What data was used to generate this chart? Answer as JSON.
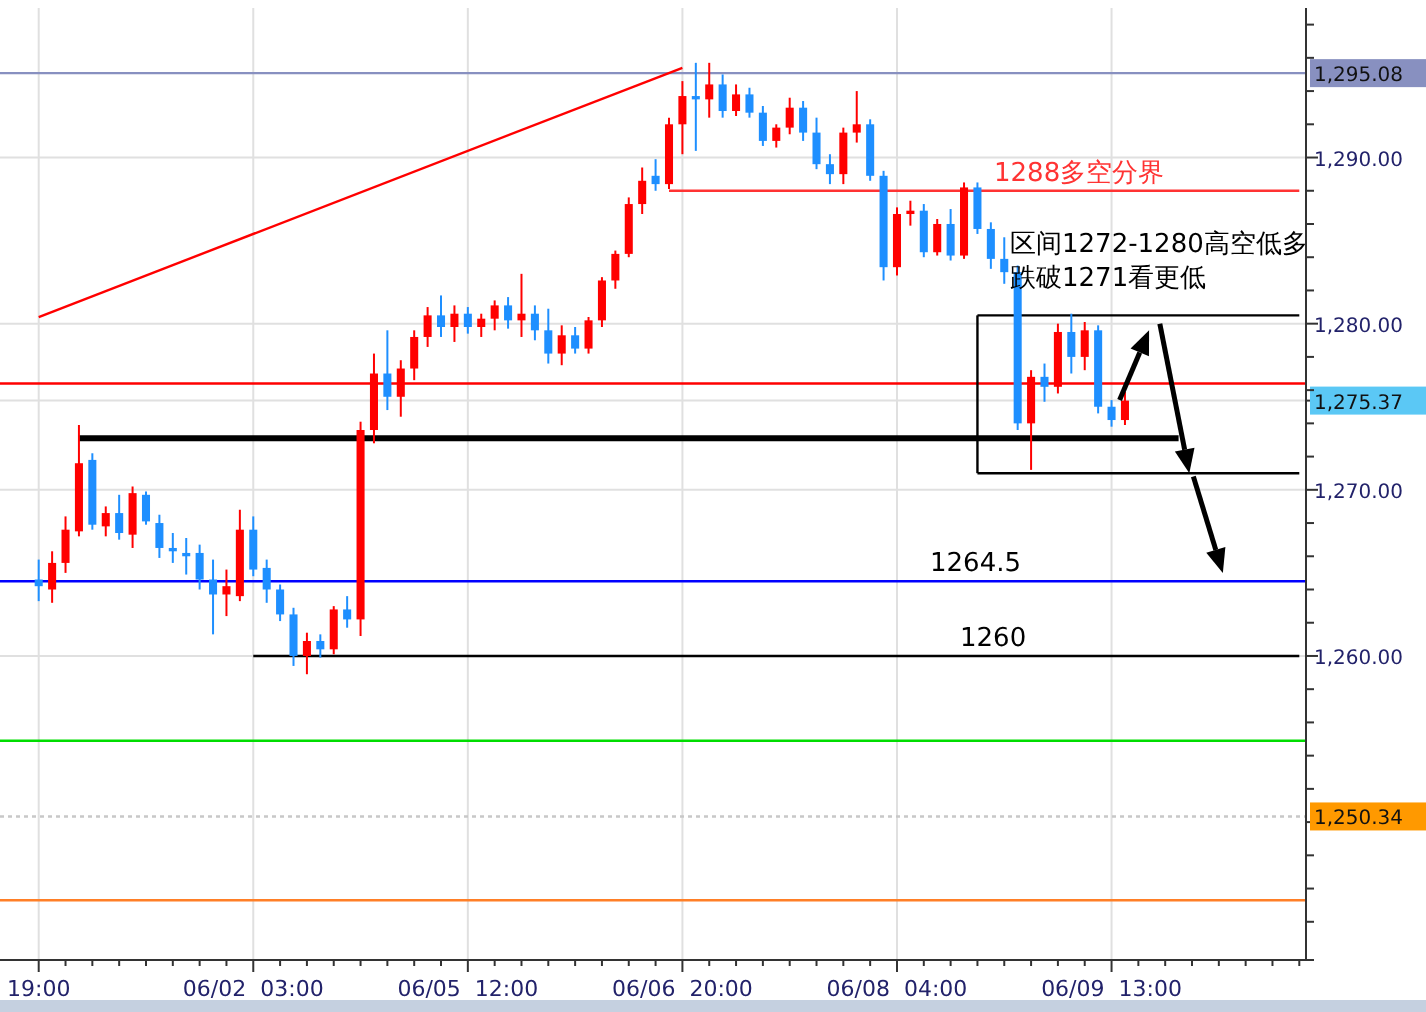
{
  "chart_data": {
    "type": "candlestick",
    "categories": [
      "19:00",
      null,
      null,
      null,
      null,
      null,
      null,
      null,
      null,
      null,
      null,
      null,
      null,
      null,
      null,
      null,
      "06/02  03:00",
      null,
      null,
      null,
      null,
      null,
      null,
      null,
      null,
      null,
      null,
      null,
      null,
      null,
      null,
      null,
      "06/05  12:00",
      null,
      null,
      null,
      null,
      null,
      null,
      null,
      null,
      null,
      null,
      null,
      null,
      null,
      null,
      null,
      "06/06  20:00",
      null,
      null,
      null,
      null,
      null,
      null,
      null,
      null,
      null,
      null,
      null,
      null,
      null,
      null,
      null,
      "06/08  04:00",
      null,
      null,
      null,
      null,
      null,
      null,
      null,
      null,
      null,
      null,
      null,
      null,
      null,
      null,
      null,
      "06/09  13:00",
      null,
      null,
      null,
      null,
      null,
      null,
      null,
      null,
      null,
      null,
      null,
      null,
      null,
      null
    ],
    "ohlc": [
      [
        1264.6,
        1265.8,
        1263.3,
        1264.2
      ],
      [
        1264.0,
        1266.3,
        1263.2,
        1265.6
      ],
      [
        1265.6,
        1268.4,
        1265.0,
        1267.6
      ],
      [
        1267.5,
        1273.9,
        1267.2,
        1271.6
      ],
      [
        1271.8,
        1272.2,
        1267.6,
        1267.9
      ],
      [
        1267.8,
        1269.0,
        1267.2,
        1268.6
      ],
      [
        1268.6,
        1269.7,
        1267.0,
        1267.4
      ],
      [
        1267.3,
        1270.2,
        1266.5,
        1269.8
      ],
      [
        1269.7,
        1269.9,
        1267.9,
        1268.1
      ],
      [
        1268.0,
        1268.5,
        1265.9,
        1266.5
      ],
      [
        1266.5,
        1267.4,
        1265.6,
        1266.3
      ],
      [
        1266.2,
        1267.1,
        1264.9,
        1266.0
      ],
      [
        1266.2,
        1266.7,
        1264.0,
        1264.6
      ],
      [
        1264.6,
        1265.8,
        1261.3,
        1263.7
      ],
      [
        1263.7,
        1265.2,
        1262.4,
        1264.2
      ],
      [
        1263.6,
        1268.8,
        1263.3,
        1267.6
      ],
      [
        1267.6,
        1268.4,
        1264.8,
        1265.2
      ],
      [
        1265.3,
        1265.8,
        1263.2,
        1264.0
      ],
      [
        1264.0,
        1264.3,
        1262.1,
        1262.5
      ],
      [
        1262.5,
        1262.9,
        1259.4,
        1260.0
      ],
      [
        1260.0,
        1261.4,
        1258.9,
        1260.9
      ],
      [
        1260.9,
        1261.3,
        1259.9,
        1260.4
      ],
      [
        1260.4,
        1263.0,
        1260.1,
        1262.8
      ],
      [
        1262.8,
        1263.6,
        1261.7,
        1262.2
      ],
      [
        1262.2,
        1274.1,
        1261.2,
        1273.6
      ],
      [
        1273.6,
        1278.2,
        1272.8,
        1277.0
      ],
      [
        1277.0,
        1279.6,
        1274.8,
        1275.6
      ],
      [
        1275.6,
        1277.8,
        1274.4,
        1277.3
      ],
      [
        1277.3,
        1279.6,
        1276.6,
        1279.2
      ],
      [
        1279.2,
        1281.0,
        1278.6,
        1280.5
      ],
      [
        1280.5,
        1281.7,
        1279.2,
        1279.8
      ],
      [
        1279.8,
        1281.1,
        1278.9,
        1280.6
      ],
      [
        1280.6,
        1281.0,
        1279.4,
        1279.8
      ],
      [
        1279.8,
        1280.6,
        1279.2,
        1280.3
      ],
      [
        1280.3,
        1281.4,
        1279.6,
        1281.1
      ],
      [
        1281.1,
        1281.6,
        1279.7,
        1280.2
      ],
      [
        1280.2,
        1283.0,
        1279.2,
        1280.6
      ],
      [
        1280.6,
        1281.1,
        1279.0,
        1279.6
      ],
      [
        1279.6,
        1280.9,
        1277.6,
        1278.2
      ],
      [
        1278.2,
        1279.9,
        1277.5,
        1279.3
      ],
      [
        1279.3,
        1279.8,
        1278.2,
        1278.5
      ],
      [
        1278.5,
        1280.4,
        1278.2,
        1280.2
      ],
      [
        1280.2,
        1282.8,
        1279.8,
        1282.6
      ],
      [
        1282.6,
        1284.4,
        1282.1,
        1284.2
      ],
      [
        1284.2,
        1287.6,
        1284.0,
        1287.2
      ],
      [
        1287.2,
        1289.4,
        1286.6,
        1288.6
      ],
      [
        1288.9,
        1289.9,
        1288.0,
        1288.4
      ],
      [
        1288.4,
        1292.4,
        1288.1,
        1292.0
      ],
      [
        1292.0,
        1294.6,
        1290.2,
        1293.7
      ],
      [
        1293.7,
        1295.7,
        1290.4,
        1293.5
      ],
      [
        1293.5,
        1295.7,
        1292.4,
        1294.4
      ],
      [
        1294.4,
        1295.0,
        1292.4,
        1292.8
      ],
      [
        1292.8,
        1294.4,
        1292.5,
        1293.8
      ],
      [
        1293.8,
        1294.2,
        1292.4,
        1292.7
      ],
      [
        1292.7,
        1293.1,
        1290.7,
        1291.0
      ],
      [
        1291.0,
        1292.0,
        1290.6,
        1291.8
      ],
      [
        1291.8,
        1293.6,
        1291.4,
        1293.0
      ],
      [
        1293.0,
        1293.4,
        1291.0,
        1291.5
      ],
      [
        1291.5,
        1292.4,
        1289.3,
        1289.6
      ],
      [
        1289.6,
        1290.2,
        1288.4,
        1289.0
      ],
      [
        1289.0,
        1291.8,
        1288.4,
        1291.5
      ],
      [
        1291.5,
        1294.0,
        1290.9,
        1292.0
      ],
      [
        1292.0,
        1292.3,
        1288.6,
        1288.9
      ],
      [
        1288.9,
        1289.2,
        1282.6,
        1283.4
      ],
      [
        1283.4,
        1287.0,
        1282.9,
        1286.6
      ],
      [
        1286.6,
        1287.4,
        1285.9,
        1286.8
      ],
      [
        1286.8,
        1287.2,
        1284.0,
        1284.3
      ],
      [
        1284.3,
        1286.3,
        1284.1,
        1286.0
      ],
      [
        1286.0,
        1286.9,
        1283.8,
        1284.1
      ],
      [
        1284.1,
        1288.5,
        1283.9,
        1288.2
      ],
      [
        1288.2,
        1288.5,
        1285.4,
        1285.7
      ],
      [
        1285.7,
        1286.1,
        1283.3,
        1283.9
      ],
      [
        1283.9,
        1285.2,
        1282.4,
        1283.1
      ],
      [
        1283.1,
        1283.5,
        1273.6,
        1274.0
      ],
      [
        1274.0,
        1277.2,
        1271.2,
        1276.8
      ],
      [
        1276.8,
        1277.6,
        1275.3,
        1276.2
      ],
      [
        1276.2,
        1280.0,
        1275.8,
        1279.5
      ],
      [
        1279.5,
        1280.6,
        1277.0,
        1278.0
      ],
      [
        1278.0,
        1280.1,
        1277.2,
        1279.6
      ],
      [
        1279.6,
        1279.9,
        1274.6,
        1275.0
      ],
      [
        1275.0,
        1275.4,
        1273.8,
        1274.2
      ],
      [
        1274.2,
        1275.9,
        1273.9,
        1275.37
      ],
      null,
      null,
      null,
      null,
      null,
      null,
      null,
      null,
      null,
      null,
      null,
      null,
      null
    ],
    "colors": [
      "#1e8fff",
      "#ff0000",
      "#ff0000",
      "#ff0000",
      "#1e8fff",
      "#ff0000",
      "#1e8fff",
      "#ff0000",
      "#1e8fff",
      "#1e8fff",
      "#1e8fff",
      "#1e8fff",
      "#1e8fff",
      "#1e8fff",
      "#ff0000",
      "#ff0000",
      "#1e8fff",
      "#1e8fff",
      "#1e8fff",
      "#1e8fff",
      "#ff0000",
      "#1e8fff",
      "#ff0000",
      "#1e8fff",
      "#ff0000",
      "#ff0000",
      "#1e8fff",
      "#ff0000",
      "#ff0000",
      "#ff0000",
      "#1e8fff",
      "#ff0000",
      "#1e8fff",
      "#ff0000",
      "#ff0000",
      "#1e8fff",
      "#ff0000",
      "#1e8fff",
      "#1e8fff",
      "#ff0000",
      "#1e8fff",
      "#ff0000",
      "#ff0000",
      "#ff0000",
      "#ff0000",
      "#ff0000",
      "#1e8fff",
      "#ff0000",
      "#ff0000",
      "#1e8fff",
      "#ff0000",
      "#1e8fff",
      "#ff0000",
      "#1e8fff",
      "#1e8fff",
      "#ff0000",
      "#ff0000",
      "#1e8fff",
      "#1e8fff",
      "#1e8fff",
      "#ff0000",
      "#ff0000",
      "#1e8fff",
      "#1e8fff",
      "#ff0000",
      "#ff0000",
      "#1e8fff",
      "#ff0000",
      "#1e8fff",
      "#ff0000",
      "#1e8fff",
      "#1e8fff",
      "#1e8fff",
      "#1e8fff",
      "#ff0000",
      "#1e8fff",
      "#ff0000",
      "#1e8fff",
      "#ff0000",
      "#1e8fff",
      "#1e8fff",
      "#ff0000",
      null,
      null,
      null,
      null,
      null,
      null,
      null,
      null,
      null,
      null,
      null,
      null,
      null
    ],
    "series": [
      {
        "type": "line",
        "values": [
          1280.4,
          null,
          null,
          null,
          null,
          null,
          null,
          null,
          null,
          null,
          null,
          null,
          null,
          null,
          null,
          null,
          null,
          null,
          null,
          null,
          null,
          null,
          null,
          null,
          null,
          null,
          null,
          null,
          null,
          null,
          null,
          null,
          null,
          null,
          null,
          null,
          null,
          null,
          null,
          null,
          null,
          null,
          null,
          null,
          null,
          null,
          null,
          null,
          1295.4,
          null,
          null,
          null,
          null,
          null,
          null,
          null,
          null,
          null,
          null,
          null,
          null,
          null,
          null,
          null,
          null,
          null,
          null,
          null,
          null,
          null,
          null,
          null,
          null,
          null,
          null,
          null,
          null,
          null,
          null,
          null,
          null,
          null,
          null,
          null,
          null,
          null,
          null,
          null,
          null,
          null,
          null,
          null,
          null,
          null,
          null
        ],
        "color": "#ff0000"
      },
      {
        "type": "line",
        "values": [
          null,
          null,
          null,
          1273.1,
          null,
          null,
          null,
          null,
          null,
          null,
          null,
          null,
          null,
          null,
          null,
          null,
          null,
          null,
          null,
          null,
          null,
          null,
          null,
          null,
          null,
          null,
          null,
          null,
          null,
          null,
          null,
          null,
          null,
          null,
          null,
          null,
          null,
          null,
          null,
          null,
          null,
          null,
          null,
          null,
          null,
          null,
          null,
          null,
          null,
          null,
          null,
          null,
          null,
          null,
          null,
          null,
          null,
          null,
          null,
          null,
          null,
          null,
          null,
          null,
          null,
          null,
          null,
          null,
          null,
          null,
          null,
          null,
          null,
          null,
          null,
          null,
          null,
          null,
          null,
          null,
          null,
          null,
          null,
          null,
          null,
          1273.1,
          null,
          null,
          null,
          null,
          null,
          null,
          null,
          null,
          null
        ],
        "color": "#000000"
      },
      {
        "type": "line",
        "values": [
          null,
          null,
          null,
          null,
          null,
          null,
          null,
          null,
          null,
          null,
          null,
          null,
          null,
          null,
          null,
          null,
          null,
          null,
          null,
          null,
          null,
          null,
          null,
          null,
          null,
          null,
          null,
          null,
          null,
          null,
          null,
          null,
          null,
          null,
          null,
          null,
          null,
          null,
          null,
          null,
          null,
          null,
          null,
          null,
          null,
          null,
          null,
          1288,
          null,
          null,
          null,
          null,
          null,
          null,
          null,
          null,
          null,
          null,
          null,
          null,
          null,
          null,
          null,
          null,
          null,
          null,
          null,
          null,
          null,
          null,
          null,
          null,
          null,
          null,
          null,
          null,
          null,
          null,
          null,
          null,
          null,
          null,
          null,
          null,
          null,
          null,
          null,
          null,
          null,
          null,
          null,
          null,
          null,
          null,
          1288
        ],
        "color": "#ff3333"
      },
      {
        "type": "line",
        "values": [
          null,
          null,
          null,
          null,
          null,
          null,
          null,
          null,
          null,
          null,
          null,
          null,
          null,
          null,
          null,
          null,
          1260,
          null,
          null,
          null,
          null,
          null,
          null,
          null,
          null,
          null,
          null,
          null,
          null,
          null,
          null,
          null,
          null,
          null,
          null,
          null,
          null,
          null,
          null,
          null,
          null,
          null,
          null,
          null,
          null,
          null,
          null,
          null,
          null,
          null,
          null,
          null,
          null,
          null,
          null,
          null,
          null,
          null,
          null,
          null,
          null,
          null,
          null,
          null,
          null,
          null,
          null,
          null,
          null,
          null,
          null,
          null,
          null,
          null,
          null,
          null,
          null,
          null,
          null,
          null,
          null,
          null,
          null,
          null,
          null,
          null,
          null,
          null,
          null,
          null,
          null,
          null,
          null,
          null,
          1260
        ],
        "color": "#000000"
      },
      {
        "type": "line",
        "values": [
          null,
          null,
          null,
          null,
          null,
          null,
          null,
          null,
          null,
          null,
          null,
          null,
          null,
          null,
          null,
          null,
          null,
          null,
          null,
          null,
          null,
          null,
          null,
          null,
          null,
          null,
          null,
          null,
          null,
          null,
          null,
          null,
          null,
          null,
          null,
          null,
          null,
          null,
          null,
          null,
          null,
          null,
          null,
          null,
          null,
          null,
          null,
          null,
          null,
          null,
          null,
          null,
          null,
          null,
          null,
          null,
          null,
          null,
          null,
          null,
          null,
          null,
          null,
          null,
          null,
          null,
          null,
          null,
          null,
          null,
          1280.5,
          null,
          null,
          null,
          null,
          null,
          null,
          null,
          null,
          null,
          null,
          null,
          null,
          null,
          null,
          null,
          null,
          null,
          null,
          null,
          null,
          null,
          null,
          null,
          1280.5
        ],
        "color": "#000000"
      },
      {
        "type": "line",
        "values": [
          null,
          null,
          null,
          null,
          null,
          null,
          null,
          null,
          null,
          null,
          null,
          null,
          null,
          null,
          null,
          null,
          null,
          null,
          null,
          null,
          null,
          null,
          null,
          null,
          null,
          null,
          null,
          null,
          null,
          null,
          null,
          null,
          null,
          null,
          null,
          null,
          null,
          null,
          null,
          null,
          null,
          null,
          null,
          null,
          null,
          null,
          null,
          null,
          null,
          null,
          null,
          null,
          null,
          null,
          null,
          null,
          null,
          null,
          null,
          null,
          null,
          null,
          null,
          null,
          null,
          null,
          null,
          null,
          null,
          null,
          1271,
          null,
          null,
          null,
          null,
          null,
          null,
          null,
          null,
          null,
          null,
          null,
          null,
          null,
          null,
          null,
          null,
          null,
          null,
          null,
          null,
          null,
          null,
          null,
          1271
        ],
        "color": "#000000"
      }
    ],
    "ref_lines": [
      {
        "axis": "y",
        "value": 1295.08,
        "label": "1,295.08",
        "color": "#8890c0"
      },
      {
        "axis": "y",
        "value": 1276.4,
        "color": "#ff0000"
      },
      {
        "axis": "y",
        "value": 1264.5,
        "color": "#0000ff"
      },
      {
        "axis": "y",
        "value": 1254.9,
        "color": "#00dd00"
      },
      {
        "axis": "y",
        "value": 1250.34,
        "label": "1,250.34",
        "color": "#c8c8c8",
        "line_style": "dotted"
      },
      {
        "axis": "y",
        "value": 1245.3,
        "color": "#ff7f27"
      }
    ],
    "annotations": [
      "1288多空分界",
      "区间1272-1280高空低多",
      "跌破1271看更低",
      {
        "text": "1264.5",
        "y": 1264.5
      },
      "1260"
    ],
    "ylim": [
      1241.7,
      1299.0
    ],
    "yticks": [
      {
        "value": 1244,
        "label": null
      },
      {
        "value": 1246,
        "label": null
      },
      {
        "value": 1248,
        "label": null
      },
      {
        "value": 1250,
        "label": null
      },
      {
        "value": 1252,
        "label": null
      },
      {
        "value": 1254,
        "label": null
      },
      {
        "value": 1256,
        "label": null
      },
      {
        "value": 1258,
        "label": null
      },
      {
        "value": 1260,
        "label": "1,260.00"
      },
      {
        "value": 1262,
        "label": null
      },
      {
        "value": 1264,
        "label": null
      },
      {
        "value": 1266,
        "label": null
      },
      {
        "value": 1268,
        "label": null
      },
      {
        "value": 1270,
        "label": "1,270.00"
      },
      {
        "value": 1272,
        "label": null
      },
      {
        "value": 1274,
        "label": null
      },
      {
        "value": 1275.37,
        "label": "1,275.37"
      },
      {
        "value": 1276,
        "label": null
      },
      {
        "value": 1278,
        "label": null
      },
      {
        "value": 1280,
        "label": "1,280.00"
      },
      {
        "value": 1282,
        "label": null
      },
      {
        "value": 1284,
        "label": null
      },
      {
        "value": 1286,
        "label": null
      },
      {
        "value": 1288,
        "label": null
      },
      {
        "value": 1290,
        "label": "1,290.00"
      },
      {
        "value": 1292,
        "label": null
      },
      {
        "value": 1294,
        "label": null
      },
      {
        "value": 1296,
        "label": null
      },
      {
        "value": 1298,
        "label": null
      }
    ],
    "grid": true
  }
}
